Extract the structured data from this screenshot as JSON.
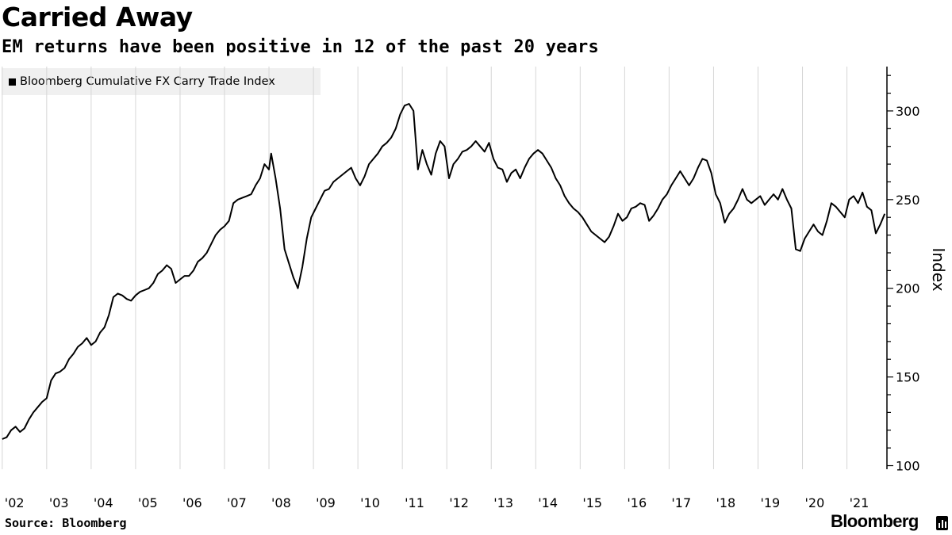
{
  "header": {
    "title": "Carried Away",
    "subtitle": "EM returns have been positive in 12 of the past 20 years"
  },
  "footer": {
    "source": "Source: Bloomberg",
    "brand": "Bloomberg"
  },
  "colors": {
    "line": "#000000",
    "gridline": "#d6d6d6",
    "legend_bg": "#f0f0f0"
  },
  "chart_data": {
    "type": "line",
    "title": "Carried Away",
    "subtitle": "EM returns have been positive in 12 of the past 20 years",
    "xlabel": "",
    "ylabel": "Index",
    "legend": [
      "Bloomberg Cumulative FX Carry Trade Index"
    ],
    "legend_position": "top-left",
    "ylim": [
      98,
      325
    ],
    "yticks": [
      100,
      150,
      200,
      250,
      300
    ],
    "xlim": [
      2001.95,
      2021.9
    ],
    "x_ticks": [
      {
        "label": "'02",
        "x": 2002
      },
      {
        "label": "'03",
        "x": 2003
      },
      {
        "label": "'04",
        "x": 2004
      },
      {
        "label": "'05",
        "x": 2005
      },
      {
        "label": "'06",
        "x": 2006
      },
      {
        "label": "'07",
        "x": 2007
      },
      {
        "label": "'08",
        "x": 2008
      },
      {
        "label": "'09",
        "x": 2009
      },
      {
        "label": "'10",
        "x": 2010
      },
      {
        "label": "'11",
        "x": 2011
      },
      {
        "label": "'12",
        "x": 2012
      },
      {
        "label": "'13",
        "x": 2013
      },
      {
        "label": "'14",
        "x": 2014
      },
      {
        "label": "'15",
        "x": 2015
      },
      {
        "label": "'16",
        "x": 2016
      },
      {
        "label": "'17",
        "x": 2017
      },
      {
        "label": "'18",
        "x": 2018
      },
      {
        "label": "'19",
        "x": 2019
      },
      {
        "label": "'20",
        "x": 2020
      },
      {
        "label": "'21",
        "x": 2021
      }
    ],
    "grid": true,
    "series": [
      {
        "name": "Bloomberg Cumulative FX Carry Trade Index",
        "points": [
          [
            2002.0,
            115
          ],
          [
            2002.1,
            116
          ],
          [
            2002.2,
            120
          ],
          [
            2002.3,
            122
          ],
          [
            2002.4,
            119
          ],
          [
            2002.5,
            121
          ],
          [
            2002.6,
            126
          ],
          [
            2002.7,
            130
          ],
          [
            2002.8,
            133
          ],
          [
            2002.9,
            136
          ],
          [
            2003.0,
            138
          ],
          [
            2003.1,
            148
          ],
          [
            2003.2,
            152
          ],
          [
            2003.3,
            153
          ],
          [
            2003.4,
            155
          ],
          [
            2003.5,
            160
          ],
          [
            2003.6,
            163
          ],
          [
            2003.7,
            167
          ],
          [
            2003.8,
            169
          ],
          [
            2003.9,
            172
          ],
          [
            2004.0,
            168
          ],
          [
            2004.1,
            170
          ],
          [
            2004.2,
            175
          ],
          [
            2004.3,
            178
          ],
          [
            2004.4,
            185
          ],
          [
            2004.5,
            195
          ],
          [
            2004.6,
            197
          ],
          [
            2004.7,
            196
          ],
          [
            2004.8,
            194
          ],
          [
            2004.9,
            193
          ],
          [
            2005.0,
            196
          ],
          [
            2005.1,
            198
          ],
          [
            2005.2,
            199
          ],
          [
            2005.3,
            200
          ],
          [
            2005.4,
            203
          ],
          [
            2005.5,
            208
          ],
          [
            2005.6,
            210
          ],
          [
            2005.7,
            213
          ],
          [
            2005.8,
            211
          ],
          [
            2005.9,
            203
          ],
          [
            2006.0,
            205
          ],
          [
            2006.1,
            207
          ],
          [
            2006.2,
            207
          ],
          [
            2006.3,
            210
          ],
          [
            2006.4,
            215
          ],
          [
            2006.5,
            217
          ],
          [
            2006.6,
            220
          ],
          [
            2006.7,
            225
          ],
          [
            2006.8,
            230
          ],
          [
            2006.9,
            233
          ],
          [
            2007.0,
            235
          ],
          [
            2007.1,
            238
          ],
          [
            2007.2,
            248
          ],
          [
            2007.3,
            250
          ],
          [
            2007.4,
            251
          ],
          [
            2007.5,
            252
          ],
          [
            2007.6,
            253
          ],
          [
            2007.7,
            258
          ],
          [
            2007.8,
            262
          ],
          [
            2007.9,
            270
          ],
          [
            2008.0,
            267
          ],
          [
            2008.05,
            276
          ],
          [
            2008.15,
            262
          ],
          [
            2008.25,
            245
          ],
          [
            2008.35,
            222
          ],
          [
            2008.45,
            214
          ],
          [
            2008.55,
            206
          ],
          [
            2008.65,
            200
          ],
          [
            2008.75,
            212
          ],
          [
            2008.85,
            228
          ],
          [
            2008.95,
            240
          ],
          [
            2009.05,
            245
          ],
          [
            2009.15,
            250
          ],
          [
            2009.25,
            255
          ],
          [
            2009.35,
            256
          ],
          [
            2009.45,
            260
          ],
          [
            2009.55,
            262
          ],
          [
            2009.65,
            264
          ],
          [
            2009.75,
            266
          ],
          [
            2009.85,
            268
          ],
          [
            2009.95,
            262
          ],
          [
            2010.05,
            258
          ],
          [
            2010.15,
            263
          ],
          [
            2010.25,
            270
          ],
          [
            2010.35,
            273
          ],
          [
            2010.45,
            276
          ],
          [
            2010.55,
            280
          ],
          [
            2010.65,
            282
          ],
          [
            2010.75,
            285
          ],
          [
            2010.85,
            290
          ],
          [
            2010.95,
            298
          ],
          [
            2011.05,
            303
          ],
          [
            2011.15,
            304
          ],
          [
            2011.25,
            300
          ],
          [
            2011.35,
            267
          ],
          [
            2011.45,
            278
          ],
          [
            2011.55,
            270
          ],
          [
            2011.65,
            264
          ],
          [
            2011.75,
            276
          ],
          [
            2011.85,
            283
          ],
          [
            2011.95,
            280
          ],
          [
            2012.05,
            262
          ],
          [
            2012.15,
            270
          ],
          [
            2012.25,
            273
          ],
          [
            2012.35,
            277
          ],
          [
            2012.45,
            278
          ],
          [
            2012.55,
            280
          ],
          [
            2012.65,
            283
          ],
          [
            2012.75,
            280
          ],
          [
            2012.85,
            277
          ],
          [
            2012.95,
            282
          ],
          [
            2013.05,
            273
          ],
          [
            2013.15,
            268
          ],
          [
            2013.25,
            267
          ],
          [
            2013.35,
            260
          ],
          [
            2013.45,
            265
          ],
          [
            2013.55,
            267
          ],
          [
            2013.65,
            262
          ],
          [
            2013.75,
            268
          ],
          [
            2013.85,
            273
          ],
          [
            2013.95,
            276
          ],
          [
            2014.05,
            278
          ],
          [
            2014.15,
            276
          ],
          [
            2014.25,
            272
          ],
          [
            2014.35,
            268
          ],
          [
            2014.45,
            262
          ],
          [
            2014.55,
            258
          ],
          [
            2014.65,
            252
          ],
          [
            2014.75,
            248
          ],
          [
            2014.85,
            245
          ],
          [
            2014.95,
            243
          ],
          [
            2015.05,
            240
          ],
          [
            2015.15,
            236
          ],
          [
            2015.25,
            232
          ],
          [
            2015.35,
            230
          ],
          [
            2015.45,
            228
          ],
          [
            2015.55,
            226
          ],
          [
            2015.65,
            229
          ],
          [
            2015.75,
            235
          ],
          [
            2015.85,
            242
          ],
          [
            2015.95,
            238
          ],
          [
            2016.05,
            240
          ],
          [
            2016.15,
            245
          ],
          [
            2016.25,
            246
          ],
          [
            2016.35,
            248
          ],
          [
            2016.45,
            247
          ],
          [
            2016.55,
            238
          ],
          [
            2016.65,
            241
          ],
          [
            2016.75,
            245
          ],
          [
            2016.85,
            250
          ],
          [
            2016.95,
            253
          ],
          [
            2017.05,
            258
          ],
          [
            2017.15,
            262
          ],
          [
            2017.25,
            266
          ],
          [
            2017.35,
            262
          ],
          [
            2017.45,
            258
          ],
          [
            2017.55,
            262
          ],
          [
            2017.65,
            268
          ],
          [
            2017.75,
            273
          ],
          [
            2017.85,
            272
          ],
          [
            2017.95,
            265
          ],
          [
            2018.05,
            253
          ],
          [
            2018.15,
            248
          ],
          [
            2018.25,
            237
          ],
          [
            2018.35,
            242
          ],
          [
            2018.45,
            245
          ],
          [
            2018.55,
            250
          ],
          [
            2018.65,
            256
          ],
          [
            2018.75,
            250
          ],
          [
            2018.85,
            248
          ],
          [
            2018.95,
            250
          ],
          [
            2019.05,
            252
          ],
          [
            2019.15,
            247
          ],
          [
            2019.25,
            250
          ],
          [
            2019.35,
            253
          ],
          [
            2019.45,
            250
          ],
          [
            2019.55,
            256
          ],
          [
            2019.65,
            250
          ],
          [
            2019.75,
            245
          ],
          [
            2019.85,
            222
          ],
          [
            2019.95,
            221
          ],
          [
            2020.05,
            228
          ],
          [
            2020.15,
            232
          ],
          [
            2020.25,
            236
          ],
          [
            2020.35,
            232
          ],
          [
            2020.45,
            230
          ],
          [
            2020.55,
            238
          ],
          [
            2020.65,
            248
          ],
          [
            2020.75,
            246
          ],
          [
            2020.85,
            243
          ],
          [
            2020.95,
            240
          ],
          [
            2021.05,
            250
          ],
          [
            2021.15,
            252
          ],
          [
            2021.25,
            248
          ],
          [
            2021.35,
            254
          ],
          [
            2021.45,
            246
          ],
          [
            2021.55,
            244
          ],
          [
            2021.65,
            231
          ],
          [
            2021.75,
            236
          ],
          [
            2021.85,
            242
          ]
        ]
      }
    ]
  }
}
